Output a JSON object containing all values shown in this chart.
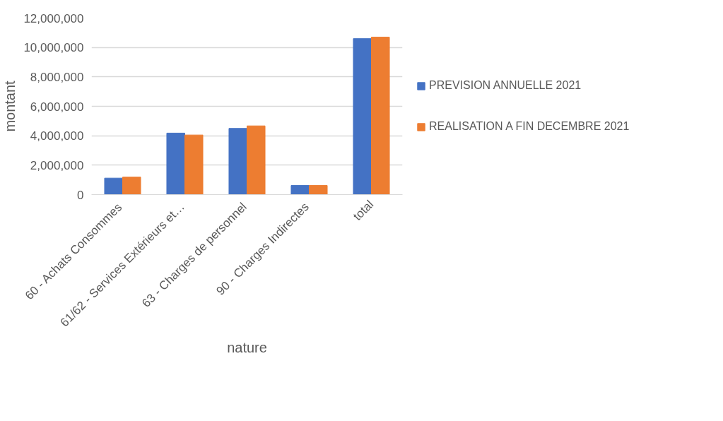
{
  "chart_data": {
    "type": "bar",
    "xlabel": "nature",
    "ylabel": "montant",
    "categories": [
      "60  - Achats Consommes",
      "61/62  - Services Extérieurs et…",
      "63  - Charges de personnel",
      "90  - Charges Indirectes",
      "total"
    ],
    "series": [
      {
        "name": "PREVISION ANNUELLE 2021",
        "color": "#4472c4",
        "values": [
          1120000,
          4180000,
          4500000,
          620000,
          10600000
        ]
      },
      {
        "name": "REALISATION A FIN DECEMBRE 2021",
        "color": "#ed7d31",
        "values": [
          1190000,
          4050000,
          4670000,
          620000,
          10700000
        ]
      }
    ],
    "ylim": [
      0,
      12000000
    ],
    "yticks": [
      {
        "value": 0,
        "label": "0"
      },
      {
        "value": 2000000,
        "label": "2,000,000"
      },
      {
        "value": 4000000,
        "label": "4,000,000"
      },
      {
        "value": 6000000,
        "label": "6,000,000"
      },
      {
        "value": 8000000,
        "label": "8,000,000"
      },
      {
        "value": 10000000,
        "label": "10,000,000"
      },
      {
        "value": 12000000,
        "label": "12,000,000"
      }
    ],
    "grid": "y",
    "legend": "right"
  }
}
